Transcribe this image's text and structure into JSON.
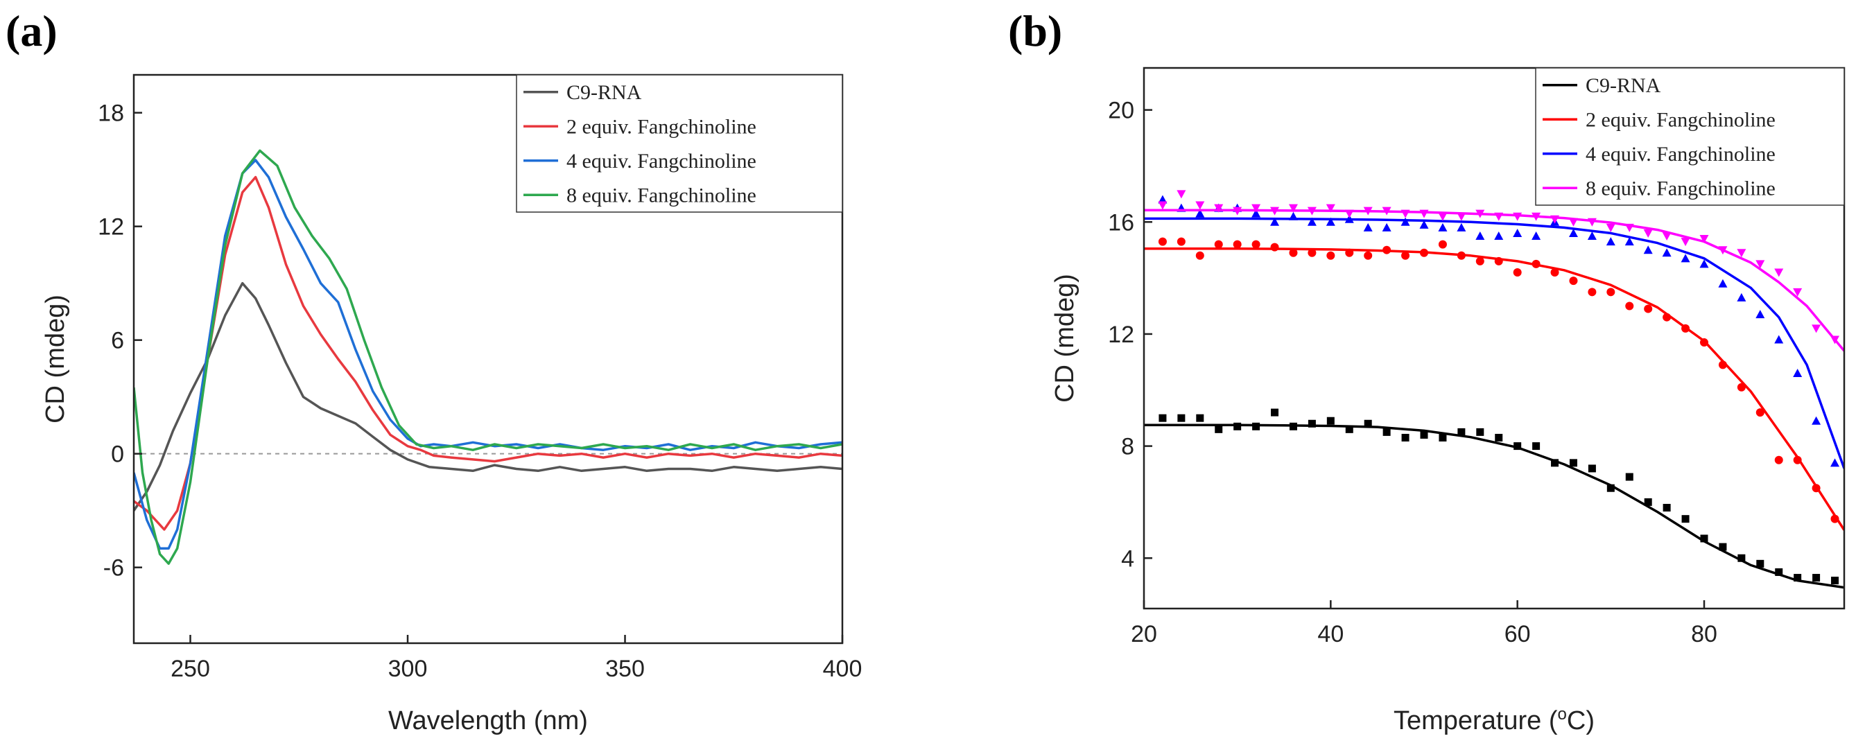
{
  "panels": [
    {
      "label": "(a)",
      "chart_data": {
        "type": "line",
        "xlabel": "Wavelength (nm)",
        "ylabel": "CD (mdeg)",
        "xlim": [
          237,
          400
        ],
        "ylim": [
          -10,
          20
        ],
        "xticks": [
          250,
          300,
          350,
          400
        ],
        "yticks": [
          -6,
          0,
          6,
          12,
          18
        ],
        "zero_line": true,
        "grid": false,
        "legend": "top-right",
        "series": [
          {
            "name": "C9-RNA",
            "color": "#555555",
            "x": [
              237,
              240,
              243,
              246,
              250,
              254,
              258,
              262,
              265,
              268,
              272,
              276,
              278,
              280,
              284,
              288,
              292,
              296,
              300,
              305,
              310,
              315,
              320,
              325,
              330,
              335,
              340,
              345,
              350,
              355,
              360,
              365,
              370,
              375,
              380,
              385,
              390,
              395,
              400
            ],
            "y": [
              -3.0,
              -2.0,
              -0.6,
              1.2,
              3.2,
              5.0,
              7.3,
              9.0,
              8.2,
              6.8,
              4.8,
              3.0,
              2.7,
              2.4,
              2.0,
              1.6,
              0.9,
              0.2,
              -0.3,
              -0.7,
              -0.8,
              -0.9,
              -0.6,
              -0.8,
              -0.9,
              -0.7,
              -0.9,
              -0.8,
              -0.7,
              -0.9,
              -0.8,
              -0.8,
              -0.9,
              -0.7,
              -0.8,
              -0.9,
              -0.8,
              -0.7,
              -0.8
            ]
          },
          {
            "name": "2 equiv. Fangchinoline",
            "color": "#e8393f",
            "x": [
              237,
              240,
              244,
              247,
              250,
              254,
              258,
              262,
              265,
              268,
              272,
              276,
              280,
              284,
              288,
              292,
              296,
              300,
              303,
              306,
              310,
              315,
              320,
              325,
              330,
              335,
              340,
              345,
              350,
              355,
              360,
              365,
              370,
              375,
              380,
              385,
              390,
              395,
              400
            ],
            "y": [
              -2.5,
              -3.0,
              -4.0,
              -3.0,
              -0.5,
              5.0,
              10.5,
              13.8,
              14.6,
              13.0,
              10.0,
              7.8,
              6.3,
              5.0,
              3.8,
              2.3,
              1.0,
              0.4,
              0.2,
              -0.1,
              -0.2,
              -0.3,
              -0.4,
              -0.2,
              0.0,
              -0.1,
              0.0,
              -0.2,
              0.0,
              -0.2,
              0.0,
              -0.1,
              0.0,
              -0.2,
              0.0,
              -0.1,
              -0.2,
              0.0,
              -0.1
            ]
          },
          {
            "name": "4 equiv. Fangchinoline",
            "color": "#1f6fd6",
            "x": [
              237,
              240,
              243,
              245,
              247,
              250,
              254,
              258,
              262,
              265,
              268,
              272,
              276,
              280,
              284,
              288,
              292,
              296,
              300,
              303,
              306,
              310,
              315,
              320,
              325,
              330,
              335,
              340,
              345,
              350,
              355,
              360,
              365,
              370,
              375,
              380,
              385,
              390,
              395,
              400
            ],
            "y": [
              -1.0,
              -3.5,
              -5.0,
              -5.0,
              -4.0,
              -0.5,
              5.5,
              11.5,
              14.8,
              15.5,
              14.6,
              12.5,
              10.8,
              9.0,
              8.0,
              5.5,
              3.3,
              1.8,
              0.8,
              0.4,
              0.5,
              0.4,
              0.6,
              0.4,
              0.5,
              0.3,
              0.5,
              0.3,
              0.2,
              0.4,
              0.3,
              0.5,
              0.2,
              0.4,
              0.3,
              0.6,
              0.4,
              0.3,
              0.5,
              0.6
            ]
          },
          {
            "name": "8 equiv. Fangchinoline",
            "color": "#2ea84f",
            "x": [
              237,
              239,
              241,
              243,
              245,
              247,
              250,
              254,
              258,
              262,
              266,
              270,
              274,
              278,
              282,
              286,
              290,
              294,
              298,
              302,
              306,
              310,
              315,
              320,
              325,
              330,
              335,
              340,
              345,
              350,
              355,
              360,
              365,
              370,
              375,
              380,
              385,
              390,
              395,
              400
            ],
            "y": [
              3.5,
              -1.0,
              -3.5,
              -5.3,
              -5.8,
              -5.0,
              -1.5,
              5.0,
              11.0,
              14.8,
              16.0,
              15.2,
              13.0,
              11.5,
              10.3,
              8.7,
              6.0,
              3.5,
              1.5,
              0.5,
              0.3,
              0.4,
              0.2,
              0.5,
              0.3,
              0.5,
              0.4,
              0.3,
              0.5,
              0.3,
              0.4,
              0.2,
              0.5,
              0.3,
              0.5,
              0.2,
              0.4,
              0.5,
              0.3,
              0.5
            ]
          }
        ]
      }
    },
    {
      "label": "(b)",
      "chart_data": {
        "type": "scatter",
        "xlabel_main": "Temperature (",
        "xlabel_sup": "o",
        "xlabel_end": "C)",
        "ylabel": "CD (mdeg)",
        "xlim": [
          20,
          95
        ],
        "ylim": [
          2.2,
          21.5
        ],
        "xticks": [
          20,
          40,
          60,
          80
        ],
        "yticks": [
          4,
          8,
          12,
          16,
          20
        ],
        "grid": false,
        "legend": "top-right",
        "series": [
          {
            "name": "C9-RNA",
            "color": "#000000",
            "marker": "square",
            "x": [
              22,
              24,
              26,
              28,
              30,
              32,
              34,
              36,
              38,
              40,
              42,
              44,
              46,
              48,
              50,
              52,
              54,
              56,
              58,
              60,
              62,
              64,
              66,
              68,
              70,
              72,
              74,
              76,
              78,
              80,
              82,
              84,
              86,
              88,
              90,
              92,
              94
            ],
            "y": [
              9.0,
              9.0,
              9.0,
              8.6,
              8.7,
              8.7,
              9.2,
              8.7,
              8.8,
              8.9,
              8.6,
              8.8,
              8.5,
              8.3,
              8.4,
              8.3,
              8.5,
              8.5,
              8.3,
              8.0,
              8.0,
              7.4,
              7.4,
              7.2,
              6.5,
              6.9,
              6.0,
              5.8,
              5.4,
              4.7,
              4.4,
              4.0,
              3.8,
              3.5,
              3.3,
              3.3,
              3.2
            ],
            "fit_x": [
              20,
              25,
              30,
              35,
              40,
              45,
              50,
              55,
              60,
              65,
              70,
              75,
              80,
              85,
              90,
              95
            ],
            "fit_y": [
              8.75,
              8.75,
              8.75,
              8.74,
              8.72,
              8.68,
              8.55,
              8.32,
              7.95,
              7.35,
              6.6,
              5.65,
              4.6,
              3.75,
              3.2,
              2.95
            ]
          },
          {
            "name": "2 equiv. Fangchinoline",
            "color": "#ff0000",
            "marker": "circle",
            "x": [
              22,
              24,
              26,
              28,
              30,
              32,
              34,
              36,
              38,
              40,
              42,
              44,
              46,
              48,
              50,
              52,
              54,
              56,
              58,
              60,
              62,
              64,
              66,
              68,
              70,
              72,
              74,
              76,
              78,
              80,
              82,
              84,
              86,
              88,
              90,
              92,
              94
            ],
            "y": [
              15.3,
              15.3,
              14.8,
              15.2,
              15.2,
              15.2,
              15.1,
              14.9,
              14.9,
              14.8,
              14.9,
              14.8,
              15.0,
              14.8,
              14.9,
              15.2,
              14.8,
              14.6,
              14.6,
              14.2,
              14.5,
              14.2,
              13.9,
              13.5,
              13.5,
              13.0,
              12.9,
              12.6,
              12.2,
              11.7,
              10.9,
              10.1,
              9.2,
              7.5,
              7.5,
              6.5,
              5.4
            ],
            "fit_x": [
              20,
              25,
              30,
              35,
              40,
              45,
              50,
              55,
              60,
              65,
              70,
              75,
              80,
              85,
              90,
              95
            ],
            "fit_y": [
              15.05,
              15.05,
              15.05,
              15.04,
              15.02,
              14.98,
              14.92,
              14.8,
              14.6,
              14.28,
              13.75,
              12.95,
              11.75,
              9.95,
              7.6,
              5.0
            ]
          },
          {
            "name": "4 equiv. Fangchinoline",
            "color": "#0000ff",
            "marker": "triangle-up",
            "x": [
              22,
              24,
              26,
              28,
              30,
              32,
              34,
              36,
              38,
              40,
              42,
              44,
              46,
              48,
              50,
              52,
              54,
              56,
              58,
              60,
              62,
              64,
              66,
              68,
              70,
              72,
              74,
              76,
              78,
              80,
              82,
              84,
              86,
              88,
              90,
              92,
              94
            ],
            "y": [
              16.8,
              16.5,
              16.3,
              16.5,
              16.5,
              16.3,
              16.0,
              16.2,
              16.0,
              16.0,
              16.1,
              15.8,
              15.8,
              16.0,
              15.9,
              15.8,
              15.8,
              15.5,
              15.5,
              15.6,
              15.5,
              16.0,
              15.6,
              15.5,
              15.3,
              15.3,
              15.0,
              14.9,
              14.7,
              14.5,
              13.8,
              13.3,
              12.7,
              11.8,
              10.6,
              8.9,
              7.4
            ],
            "fit_x": [
              20,
              25,
              30,
              35,
              40,
              45,
              50,
              55,
              60,
              65,
              70,
              75,
              80,
              85,
              88,
              91,
              95
            ],
            "fit_y": [
              16.12,
              16.12,
              16.12,
              16.11,
              16.1,
              16.08,
              16.05,
              16.0,
              15.92,
              15.8,
              15.6,
              15.25,
              14.7,
              13.65,
              12.6,
              10.9,
              7.2
            ]
          },
          {
            "name": "8 equiv. Fangchinoline",
            "color": "#ff00ff",
            "marker": "triangle-down",
            "x": [
              22,
              24,
              26,
              28,
              30,
              32,
              34,
              36,
              38,
              40,
              42,
              44,
              46,
              48,
              50,
              52,
              54,
              56,
              58,
              60,
              62,
              64,
              66,
              68,
              70,
              72,
              74,
              76,
              78,
              80,
              82,
              84,
              86,
              88,
              90,
              92,
              94
            ],
            "y": [
              16.6,
              17.0,
              16.6,
              16.5,
              16.4,
              16.5,
              16.4,
              16.5,
              16.4,
              16.5,
              16.3,
              16.4,
              16.4,
              16.3,
              16.3,
              16.2,
              16.2,
              16.3,
              16.2,
              16.2,
              16.2,
              16.1,
              16.0,
              16.0,
              15.8,
              15.8,
              15.6,
              15.5,
              15.3,
              15.4,
              15.0,
              14.9,
              14.5,
              14.2,
              13.5,
              12.2,
              11.8
            ],
            "fit_x": [
              20,
              25,
              30,
              35,
              40,
              45,
              50,
              55,
              60,
              65,
              70,
              75,
              80,
              85,
              88,
              91,
              95
            ],
            "fit_y": [
              16.42,
              16.42,
              16.42,
              16.41,
              16.4,
              16.38,
              16.35,
              16.3,
              16.24,
              16.14,
              15.98,
              15.72,
              15.3,
              14.55,
              13.85,
              13.0,
              11.4
            ]
          }
        ]
      }
    }
  ]
}
